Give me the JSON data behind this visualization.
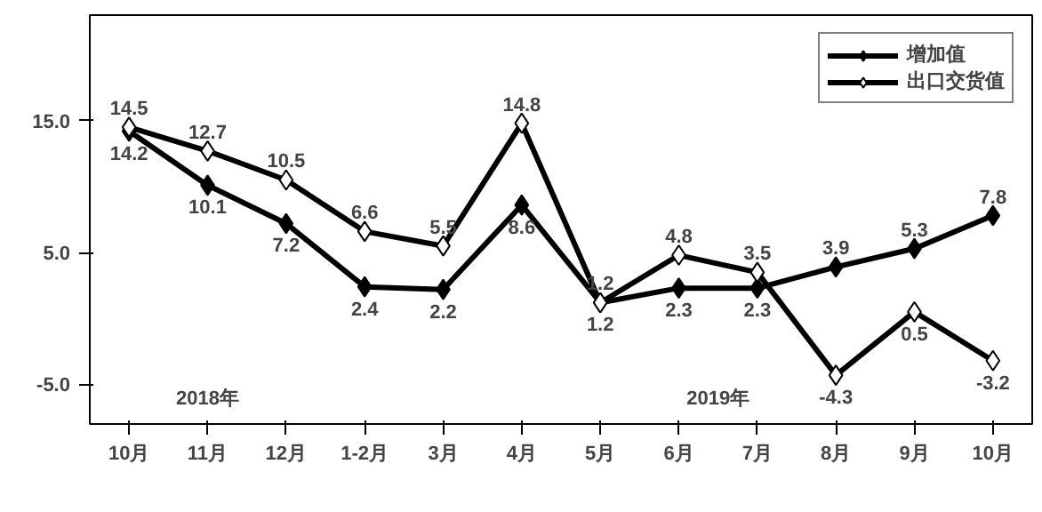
{
  "chart_data": {
    "type": "line",
    "categories": [
      "10月",
      "11月",
      "12月",
      "1-2月",
      "3月",
      "4月",
      "5月",
      "6月",
      "7月",
      "8月",
      "9月",
      "10月"
    ],
    "series": [
      {
        "name": "增加值",
        "color": "#000000",
        "values": [
          14.2,
          10.1,
          7.2,
          2.4,
          2.2,
          8.6,
          1.2,
          2.3,
          2.3,
          3.9,
          5.3,
          7.8
        ]
      },
      {
        "name": "出口交货值",
        "color": "#000000",
        "values": [
          14.5,
          12.7,
          10.5,
          6.6,
          5.5,
          14.8,
          1.2,
          4.8,
          3.5,
          -4.3,
          0.5,
          -3.2
        ]
      }
    ],
    "ylim": [
      -8,
      23
    ],
    "yticks": [
      {
        "value": -5,
        "label": "-5.0"
      },
      {
        "value": 5,
        "label": "5.0"
      },
      {
        "value": 15,
        "label": "15.0"
      }
    ],
    "annotations": [
      "2018年",
      "2019年"
    ],
    "data_labels": true,
    "legend": "top right",
    "grid": false,
    "marker": "diamond",
    "line_style": "solid"
  }
}
